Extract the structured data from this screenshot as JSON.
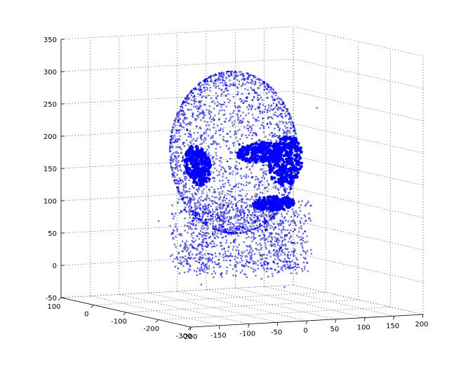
{
  "chart_data": {
    "type": "scatter",
    "projection": "3d",
    "marker": "dot",
    "series_color": "#0000ff",
    "grid": true,
    "xlim": [
      -200,
      200
    ],
    "ylim": [
      -300,
      100
    ],
    "zlim": [
      -50,
      350
    ],
    "x_ticks": [
      "-200",
      "-150",
      "-100",
      "-50",
      "0",
      "50",
      "100",
      "150",
      "200"
    ],
    "y_ticks": [
      "-300",
      "-200",
      "-100",
      "0",
      "100"
    ],
    "z_ticks": [
      "-50",
      "0",
      "50",
      "100",
      "150",
      "200",
      "250",
      "300",
      "350"
    ],
    "title": "",
    "xlabel": "",
    "ylabel": "",
    "zlabel": "",
    "point_cloud": {
      "shape": "head",
      "scattered_points": 4000,
      "dense_regions": [
        "left-eye",
        "right-eye",
        "mouth"
      ]
    }
  }
}
